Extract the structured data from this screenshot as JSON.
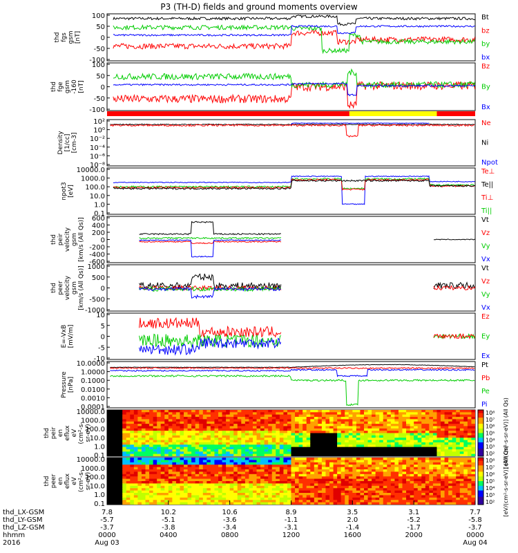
{
  "title": "P3 (TH-D) fields and ground moments overview",
  "colors": {
    "black": "#000000",
    "red": "#ff0000",
    "green": "#00cc00",
    "blue": "#0000ff",
    "yellow": "#ffff00"
  },
  "chart_data": {
    "type": "line",
    "x_axis": {
      "rows": [
        {
          "label": "thd_LX-GSM",
          "values": [
            "7.8",
            "10.2",
            "10.6",
            "8.9",
            "3.5",
            "3.1",
            "7.7"
          ]
        },
        {
          "label": "thd_LY-GSM",
          "values": [
            "-5.7",
            "-5.1",
            "-3.6",
            "-1.1",
            "2.0",
            "-5.2",
            "-5.8"
          ]
        },
        {
          "label": "thd_LZ-GSM",
          "values": [
            "-3.7",
            "-3.8",
            "-3.4",
            "-3.1",
            "-1.4",
            "-1.7",
            "-3.7"
          ]
        },
        {
          "label": "hhmm",
          "values": [
            "0000",
            "0400",
            "0800",
            "1200",
            "1600",
            "2000",
            "0000"
          ]
        },
        {
          "label": "2016",
          "values": [
            "Aug 03",
            "",
            "",
            "",
            "",
            "",
            "Aug 04"
          ]
        }
      ],
      "range_hours": [
        0,
        24
      ]
    },
    "panels": [
      {
        "name": "fgs",
        "ylabel": [
          "thd",
          "fgs",
          "gsm",
          "[nT]"
        ],
        "ticks": [
          "100",
          "50",
          "0",
          "-50",
          "-100"
        ],
        "ylim": [
          -100,
          100
        ],
        "legend": [
          {
            "label": "Bt",
            "color": "#000000"
          },
          {
            "label": "bz",
            "color": "#ff0000"
          },
          {
            "label": "by",
            "color": "#00cc00"
          },
          {
            "label": "bx",
            "color": "#0000ff"
          }
        ]
      },
      {
        "name": "fge",
        "ylabel": [
          "thd",
          "fge",
          "gsm",
          "-160",
          "[nT]"
        ],
        "ticks": [
          "100",
          "50",
          "0",
          "-50",
          "-100"
        ],
        "ylim": [
          -120,
          100
        ],
        "legend": [
          {
            "label": "Bz",
            "color": "#ff0000"
          },
          {
            "label": "By",
            "color": "#00cc00"
          },
          {
            "label": "Bx",
            "color": "#0000ff"
          }
        ]
      },
      {
        "name": "density",
        "ylabel": [
          "Density",
          "[1/cc]",
          "[cm-3]"
        ],
        "ticks": [
          "10²",
          "10⁰",
          "10⁻²",
          "10⁻⁴",
          "10⁻⁶",
          "10⁻⁸"
        ],
        "ylim": [
          -8,
          2
        ],
        "log": true,
        "legend": [
          {
            "label": "Ne",
            "color": "#ff0000"
          },
          {
            "label": "Ni",
            "color": "#000000"
          },
          {
            "label": "Npot",
            "color": "#0000ff"
          }
        ]
      },
      {
        "name": "temperature",
        "ylabel": [
          "npot3",
          "[eV]"
        ],
        "ticks": [
          "10000.0",
          "1000.0",
          "100.0",
          "10.0",
          "1.0",
          "0.1"
        ],
        "ylim": [
          -1,
          4
        ],
        "log": true,
        "legend": [
          {
            "label": "Te⊥",
            "color": "#ff0000"
          },
          {
            "label": "Te||",
            "color": "#000000"
          },
          {
            "label": "Ti⊥",
            "color": "#ff0000"
          },
          {
            "label": "Ti||",
            "color": "#00cc00"
          }
        ]
      },
      {
        "name": "ion_velocity",
        "ylabel": [
          "thd",
          "peir",
          "velocity",
          "gsm",
          "[km/s (All Qs)]"
        ],
        "ticks": [
          "600",
          "400",
          "200",
          "0",
          "-200",
          "-400",
          "-600"
        ],
        "ylim": [
          -600,
          600
        ],
        "legend": [
          {
            "label": "Vt",
            "color": "#000000"
          },
          {
            "label": "Vz",
            "color": "#ff0000"
          },
          {
            "label": "Vy",
            "color": "#00cc00"
          },
          {
            "label": "Vx",
            "color": "#0000ff"
          }
        ]
      },
      {
        "name": "electron_velocity",
        "ylabel": [
          "thd",
          "peer",
          "velocity",
          "gsm",
          "[km/s (All Qs)]"
        ],
        "ticks": [
          "1000",
          "500",
          "0",
          "-500",
          "-1000"
        ],
        "ylim": [
          -1000,
          1000
        ],
        "legend": [
          {
            "label": "Vt",
            "color": "#000000"
          },
          {
            "label": "Vz",
            "color": "#ff0000"
          },
          {
            "label": "Vy",
            "color": "#00cc00"
          },
          {
            "label": "Vx",
            "color": "#0000ff"
          }
        ]
      },
      {
        "name": "efield",
        "ylabel": [
          "E=-VxB",
          "[mV/m]"
        ],
        "ticks": [
          "10",
          "5",
          "0",
          "-5",
          "-10"
        ],
        "ylim": [
          -10,
          10
        ],
        "legend": [
          {
            "label": "Ez",
            "color": "#ff0000"
          },
          {
            "label": "Ey",
            "color": "#00cc00"
          },
          {
            "label": "Ex",
            "color": "#0000ff"
          }
        ]
      },
      {
        "name": "pressure",
        "ylabel": [
          "Pressure",
          "[nPa]"
        ],
        "ticks": [
          "10.0000",
          "1.0000",
          "0.1000",
          "0.0100",
          "0.0010",
          "0.0001"
        ],
        "ylim": [
          -4,
          1
        ],
        "log": true,
        "legend": [
          {
            "label": "Pt",
            "color": "#000000"
          },
          {
            "label": "Pb",
            "color": "#ff0000"
          },
          {
            "label": "Pe",
            "color": "#00cc00"
          },
          {
            "label": "Pi",
            "color": "#0000ff"
          }
        ]
      },
      {
        "name": "ion_spectrogram",
        "type": "heatmap",
        "ylabel": [
          "thd",
          "peir",
          "en",
          "eflux",
          "eV",
          "(cm²-s-",
          "sr-eV)"
        ],
        "ticks": [
          "10000.0",
          "1000.0",
          "100.0",
          "10.0",
          "1.0",
          "0.1"
        ],
        "colorbar_ticks": [
          "10⁸",
          "10⁷",
          "10⁶",
          "10⁵",
          "10⁴",
          "10³",
          "10²"
        ],
        "colorbar_label": "[eV/(cm²-s-sr-eV)] (All Qs)"
      },
      {
        "name": "electron_spectrogram",
        "type": "heatmap",
        "ylabel": [
          "thd",
          "peer",
          "en",
          "eflux",
          "eV",
          "(cm²-s-",
          "sr-eV)"
        ],
        "ticks": [
          "10000.0",
          "1000.0",
          "100.0",
          "10.0",
          "1.0",
          "0.1"
        ],
        "colorbar_ticks": [
          "10⁸",
          "10⁷",
          "10⁶",
          "10⁵",
          "10⁴",
          "10³",
          "10²"
        ],
        "colorbar_label": "[eV/(cm²-s-sr-eV)] (All Qs)"
      }
    ],
    "mode_bar": [
      {
        "start": 0,
        "end": 15.8,
        "color": "#ff0000"
      },
      {
        "start": 15.8,
        "end": 21.5,
        "color": "#ffff00"
      },
      {
        "start": 21.5,
        "end": 24,
        "color": "#ff0000"
      }
    ]
  }
}
